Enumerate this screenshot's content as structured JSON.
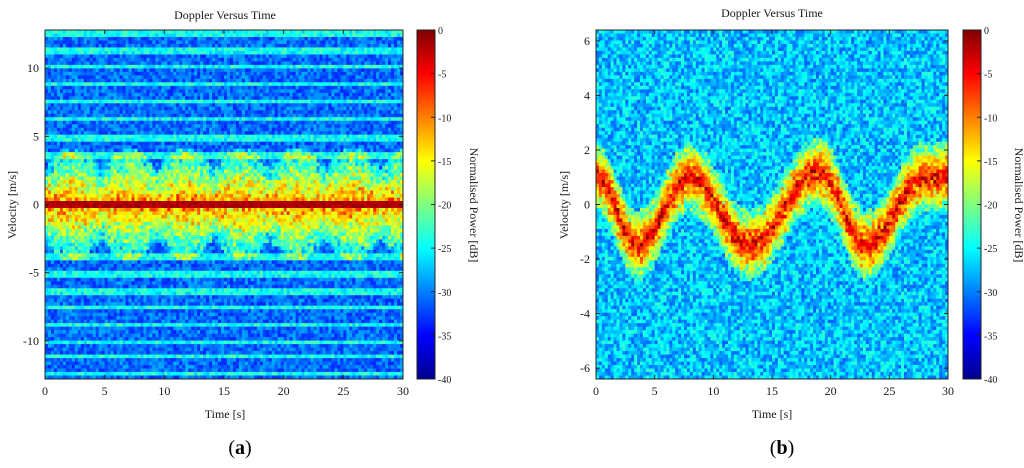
{
  "chart_data": [
    {
      "type": "heatmap",
      "panel": "(a)",
      "panel_letter": "a",
      "title": "Doppler Versus Time",
      "xlabel": "Time [s]",
      "ylabel": "Velocity [m/s]",
      "xlim": [
        0,
        30
      ],
      "ylim": [
        -12.8,
        12.8
      ],
      "xticks": [
        0,
        5,
        10,
        15,
        20,
        25,
        30
      ],
      "yticks": [
        -10,
        -5,
        0,
        5,
        10
      ],
      "colorbar": {
        "label": "Normalised Power [dB]",
        "range": [
          -40,
          0
        ],
        "ticks": [
          0,
          -5,
          -10,
          -15,
          -20,
          -25,
          -30,
          -35,
          -40
        ]
      },
      "features": {
        "zero_velocity_line_dB": 0,
        "activity_periods_s": [
          [
            0,
            3.5
          ],
          [
            3.5,
            12.5
          ],
          [
            12.5,
            22.3
          ],
          [
            22.3,
            30
          ]
        ],
        "peak_velocity_range_m_s": [
          -5,
          5
        ]
      }
    },
    {
      "type": "heatmap",
      "panel": "(b)",
      "panel_letter": "b",
      "title": "Doppler Versus Time",
      "xlabel": "Time [s]",
      "ylabel": "Velocity [m/s]",
      "xlim": [
        0,
        30
      ],
      "ylim": [
        -6.4,
        6.4
      ],
      "xticks": [
        0,
        5,
        10,
        15,
        20,
        25,
        30
      ],
      "yticks": [
        -6,
        -4,
        -2,
        0,
        2,
        4,
        6
      ],
      "colorbar": {
        "label": "Normalised Power [dB]",
        "range": [
          -40,
          0
        ],
        "ticks": [
          0,
          -5,
          -10,
          -15,
          -20,
          -25,
          -30,
          -35,
          -40
        ]
      },
      "features": {
        "doppler_oscillation_s": [
          [
            0,
            1
          ],
          [
            3.5,
            -1.5
          ],
          [
            8,
            1
          ],
          [
            13,
            -1.5
          ],
          [
            19,
            1.2
          ],
          [
            23,
            -1.5
          ],
          [
            28,
            1
          ]
        ]
      }
    }
  ]
}
